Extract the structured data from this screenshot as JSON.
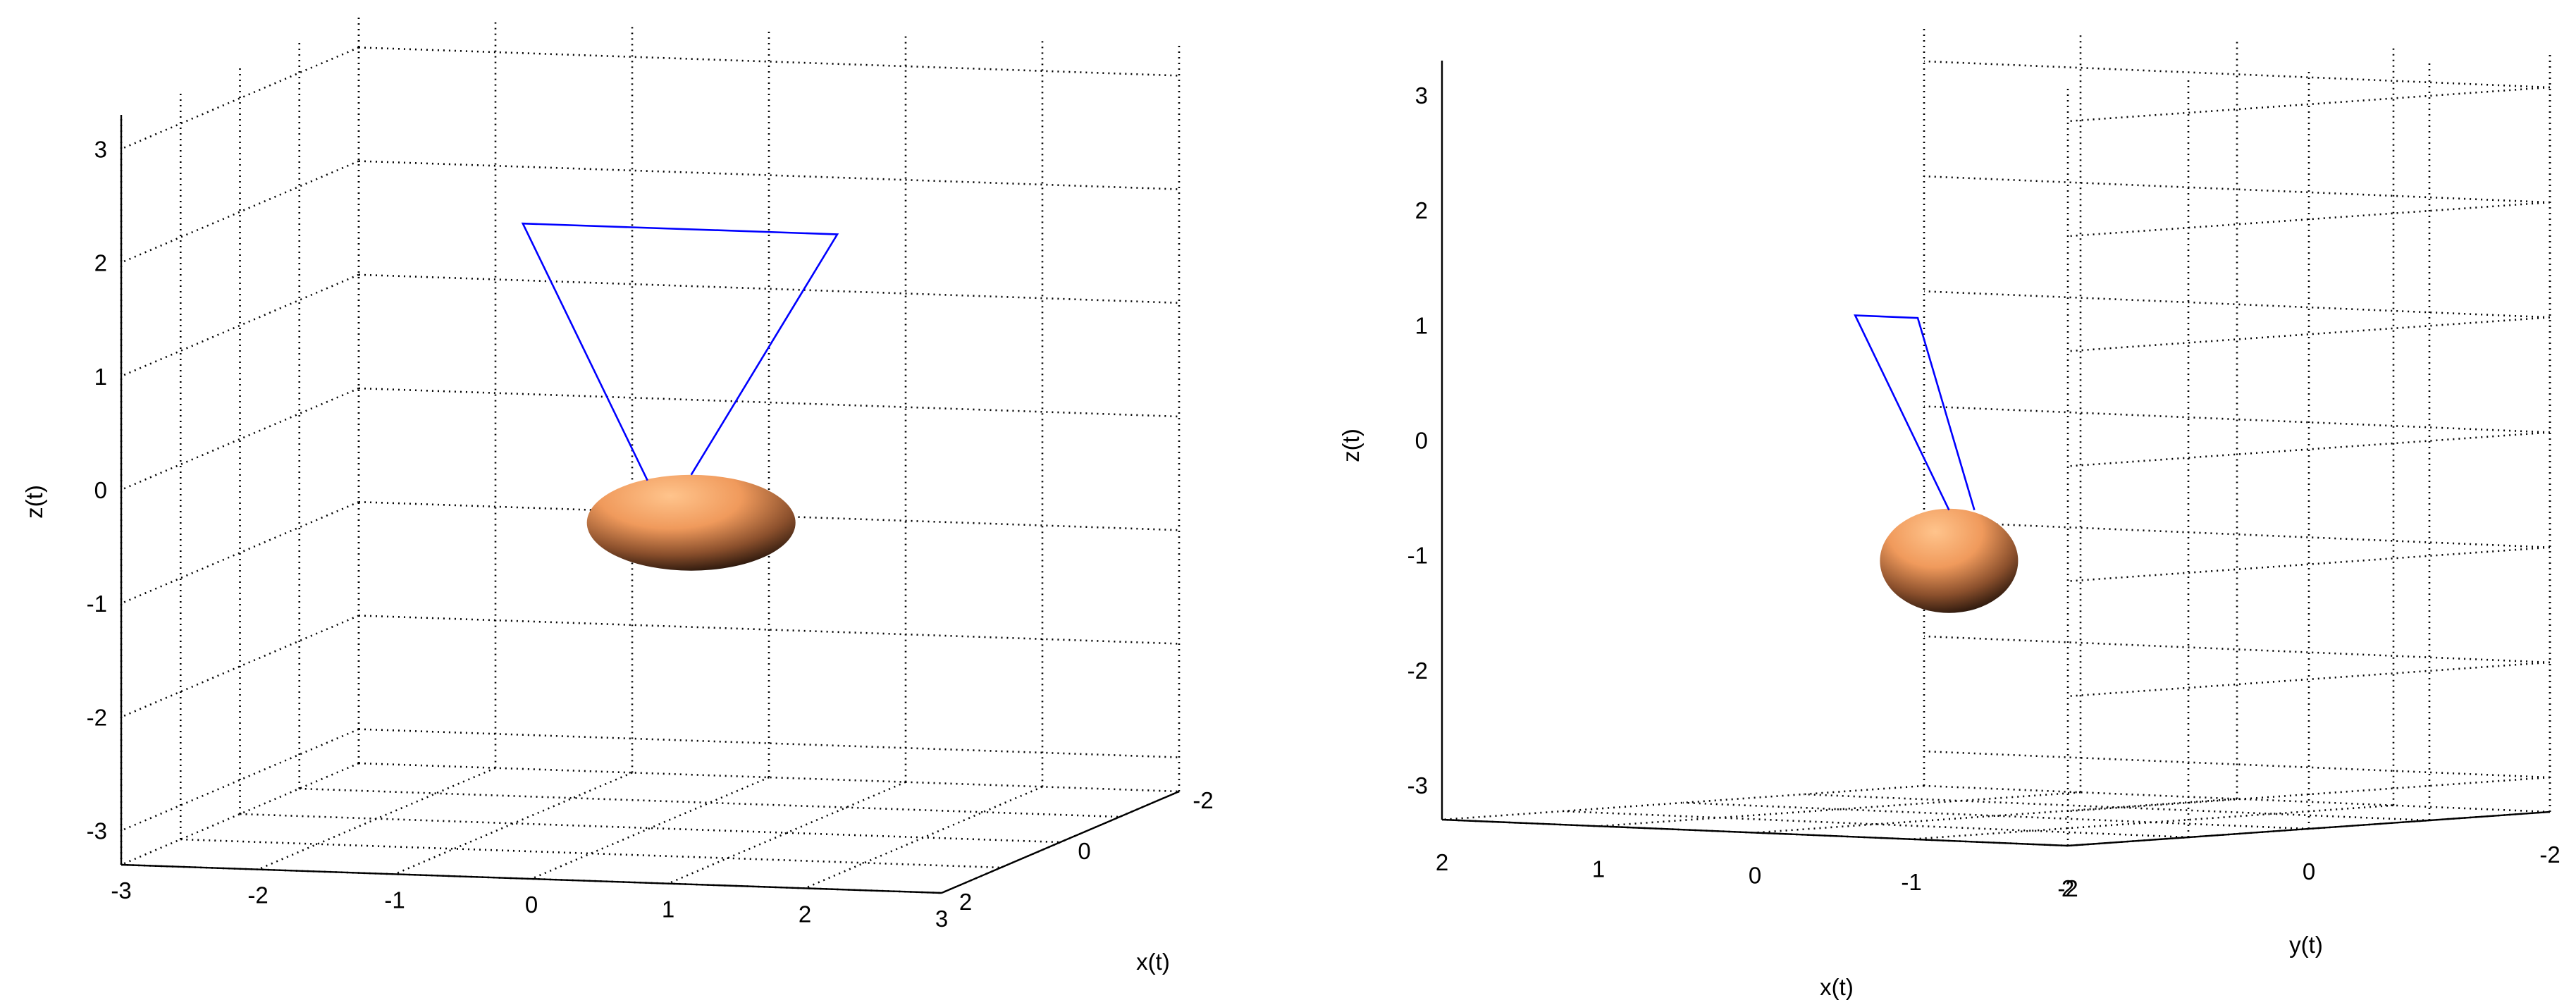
{
  "chart_data": [
    {
      "type": "line3d",
      "view": "x-z",
      "xlabel": "x(t)",
      "ylabel": "",
      "zlabel": "z(t)",
      "xlim": [
        -3,
        3
      ],
      "ylim": [
        -2,
        2
      ],
      "zlim": [
        -3.3,
        3.3
      ],
      "xticks": [
        "-3",
        "-2",
        "-1",
        "0",
        "1",
        "2",
        "3"
      ],
      "yticks": [
        "-2",
        "0",
        "2"
      ],
      "zticks": [
        "-3",
        "-2",
        "-1",
        "0",
        "1",
        "2",
        "3"
      ],
      "grid": true,
      "pendulum": {
        "pivot": [
          -1.8,
          -2.0,
          1.5
        ],
        "corner": [
          0.5,
          -2.0,
          1.5
        ],
        "bob": [
          0.3,
          0.0,
          -0.6
        ],
        "rod_color": "#0000ff",
        "bob_color": "#f4a268"
      }
    },
    {
      "type": "line3d",
      "view": "y-z",
      "xlabel": "x(t)",
      "ylabel": "y(t)",
      "zlabel": "z(t)",
      "xlim": [
        -2,
        2
      ],
      "ylim": [
        -2,
        2
      ],
      "zlim": [
        -3.3,
        3.3
      ],
      "xticks": [
        "2",
        "1",
        "0",
        "-1",
        "-2"
      ],
      "yticks": [
        "2",
        "0",
        "-2"
      ],
      "zticks": [
        "-3",
        "-2",
        "-1",
        "0",
        "1",
        "2",
        "3"
      ],
      "grid": true,
      "pendulum": {
        "pivot": [
          0.9,
          0.0,
          1.0
        ],
        "corner": [
          0.5,
          0.0,
          1.0
        ],
        "bob": [
          0.3,
          0.0,
          -1.1
        ],
        "rod_color": "#0000ff",
        "bob_color": "#f4a268"
      }
    }
  ]
}
